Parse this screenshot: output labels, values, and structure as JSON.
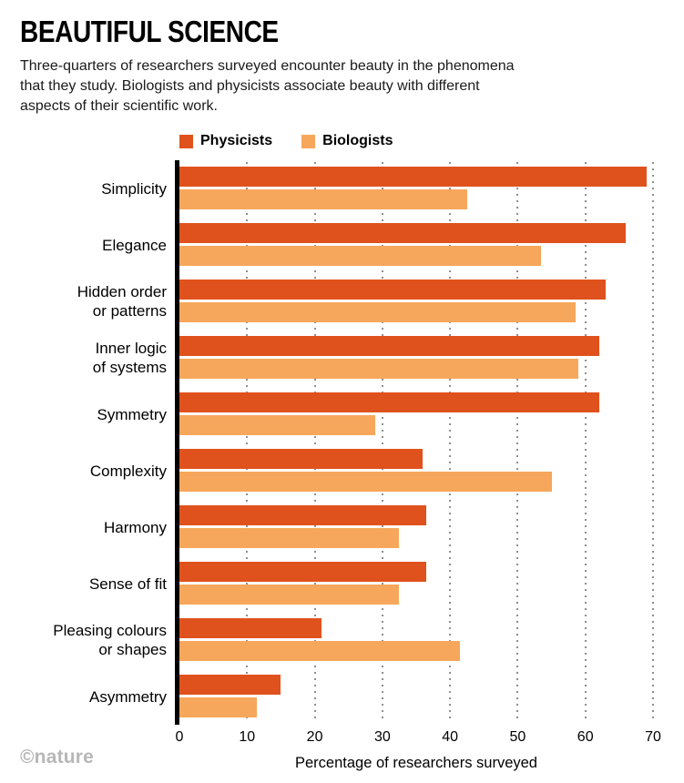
{
  "header": {
    "title": "BEAUTIFUL SCIENCE",
    "subtitle": "Three-quarters of researchers surveyed encounter beauty in the phenomena that they study. Biologists and physicists associate beauty with different aspects of their scientific work."
  },
  "footer": {
    "credit": "©nature"
  },
  "chart_data": {
    "type": "bar",
    "orientation": "horizontal",
    "title": "BEAUTIFUL SCIENCE",
    "categories": [
      "Simplicity",
      "Elegance",
      "Hidden order\nor patterns",
      "Inner logic\nof systems",
      "Symmetry",
      "Complexity",
      "Harmony",
      "Sense of fit",
      "Pleasing colours\nor shapes",
      "Asymmetry"
    ],
    "series": [
      {
        "name": "Physicists",
        "color": "#e0521d",
        "values": [
          69,
          66,
          63,
          62,
          62,
          36,
          36.5,
          36.5,
          21,
          15
        ]
      },
      {
        "name": "Biologists",
        "color": "#f7a75b",
        "values": [
          42.5,
          53.5,
          58.5,
          59,
          29,
          55,
          32.5,
          32.5,
          41.5,
          11.5
        ]
      }
    ],
    "xlabel": "Percentage of researchers surveyed",
    "ylabel": "",
    "xlim": [
      0,
      70
    ],
    "xticks": [
      0,
      10,
      20,
      30,
      40,
      50,
      60,
      70
    ],
    "grid": "dotted-vertical",
    "legend_position": "top",
    "colors": {
      "axis": "#000000",
      "gridline": "#8f8f8f"
    }
  }
}
